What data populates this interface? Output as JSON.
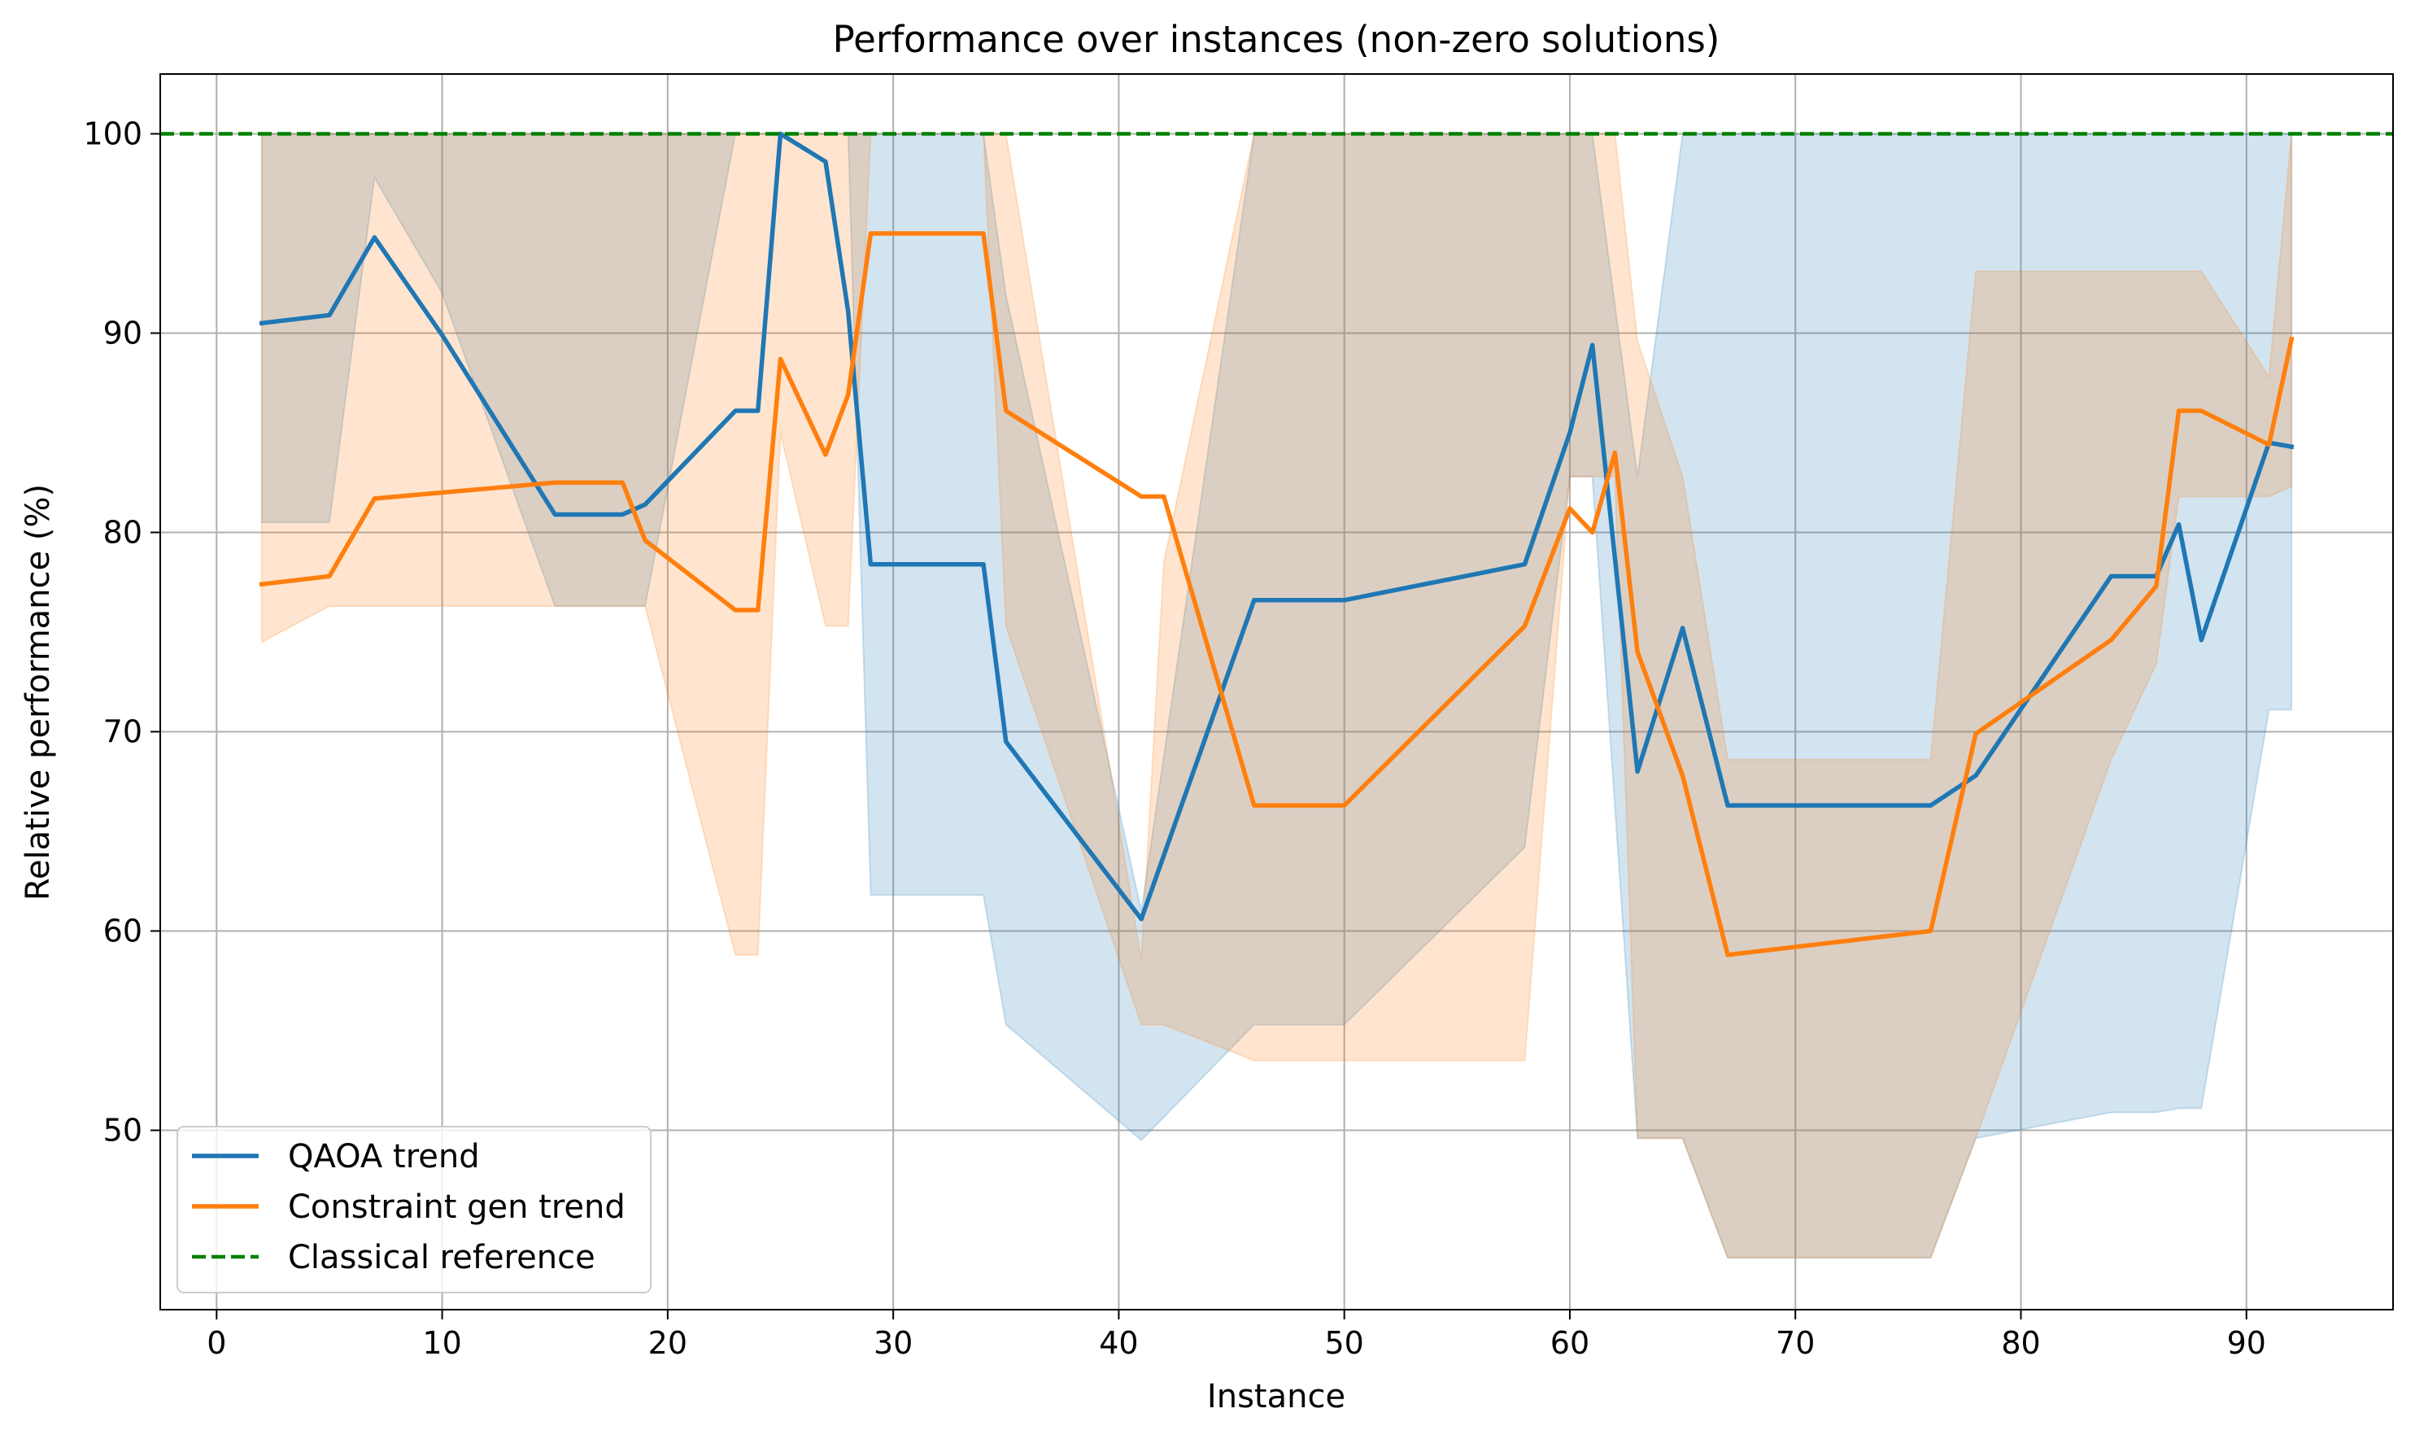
{
  "chart_data": {
    "type": "line",
    "title": "Performance over instances (non-zero solutions)",
    "xlabel": "Instance",
    "ylabel": "Relative performance (%)",
    "xlim": [
      -2.5,
      96.5
    ],
    "ylim": [
      41,
      103
    ],
    "xticks": [
      0,
      10,
      20,
      30,
      40,
      50,
      60,
      70,
      80,
      90
    ],
    "yticks": [
      50,
      60,
      70,
      80,
      90,
      100
    ],
    "grid": true,
    "legend_position": "lower-left",
    "series": [
      {
        "name": "QAOA trend",
        "color": "#1f77b4",
        "band_color": "#1f77b4",
        "x": [
          2,
          5,
          7,
          10,
          15,
          18,
          19,
          23,
          24,
          25,
          27,
          28,
          29,
          34,
          35,
          41,
          46,
          50,
          58,
          60,
          61,
          63,
          65,
          67,
          76,
          78,
          84,
          86,
          87,
          88,
          91,
          92
        ],
        "y": [
          90.5,
          90.9,
          94.8,
          89.9,
          80.9,
          80.9,
          81.4,
          86.1,
          86.1,
          100,
          98.6,
          91.1,
          78.4,
          78.4,
          69.5,
          60.6,
          76.6,
          76.6,
          78.4,
          85.0,
          89.4,
          68.0,
          75.2,
          66.3,
          66.3,
          67.8,
          77.8,
          77.8,
          80.4,
          74.6,
          84.5,
          84.3
        ],
        "band_lower": [
          80.5,
          80.5,
          97.8,
          92.0,
          76.3,
          76.3,
          76.3,
          100,
          100,
          100,
          100,
          100,
          61.8,
          61.8,
          55.3,
          49.5,
          55.3,
          55.3,
          64.2,
          82.8,
          82.8,
          49.6,
          49.6,
          43.6,
          43.6,
          49.6,
          50.9,
          50.9,
          51.1,
          51.1,
          71.1,
          71.1
        ],
        "band_upper": [
          100,
          100,
          100,
          100,
          100,
          100,
          100,
          100,
          100,
          100,
          100,
          100,
          100,
          100,
          91.9,
          61.0,
          100,
          100,
          100,
          100,
          100,
          82.8,
          100,
          100,
          100,
          100,
          100,
          100,
          100,
          100,
          100,
          100
        ]
      },
      {
        "name": "Constraint gen trend",
        "color": "#ff7f0e",
        "band_color": "#ff7f0e",
        "x": [
          2,
          5,
          7,
          15,
          18,
          19,
          23,
          24,
          25,
          27,
          28,
          29,
          34,
          35,
          41,
          42,
          46,
          50,
          58,
          60,
          61,
          62,
          63,
          65,
          67,
          76,
          78,
          84,
          86,
          87,
          88,
          91,
          92
        ],
        "y": [
          77.4,
          77.8,
          81.7,
          82.5,
          82.5,
          79.6,
          76.1,
          76.1,
          88.7,
          83.9,
          86.9,
          95.0,
          95.0,
          86.1,
          81.8,
          81.8,
          66.3,
          66.3,
          75.3,
          81.2,
          80.0,
          84.0,
          74.0,
          67.8,
          58.8,
          60.0,
          69.9,
          74.6,
          77.3,
          86.1,
          86.1,
          84.4,
          89.7
        ],
        "band_lower": [
          74.5,
          76.3,
          76.3,
          76.3,
          76.3,
          76.3,
          58.8,
          58.8,
          85.0,
          75.3,
          75.3,
          100,
          100,
          75.3,
          55.3,
          55.3,
          53.5,
          53.5,
          53.5,
          82.8,
          82.8,
          82.8,
          49.6,
          49.6,
          43.6,
          43.6,
          49.6,
          68.6,
          73.4,
          81.8,
          81.8,
          81.8,
          82.3
        ],
        "band_upper": [
          100,
          100,
          100,
          100,
          100,
          100,
          100,
          100,
          100,
          100,
          100,
          100,
          100,
          100,
          58.5,
          78.5,
          100,
          100,
          100,
          100,
          100,
          100,
          89.6,
          82.8,
          68.6,
          68.6,
          93.1,
          93.1,
          93.1,
          93.1,
          93.1,
          87.8,
          100
        ]
      },
      {
        "name": "Classical reference",
        "color": "#008000",
        "style": "dashed",
        "y_constant": 100
      }
    ]
  }
}
